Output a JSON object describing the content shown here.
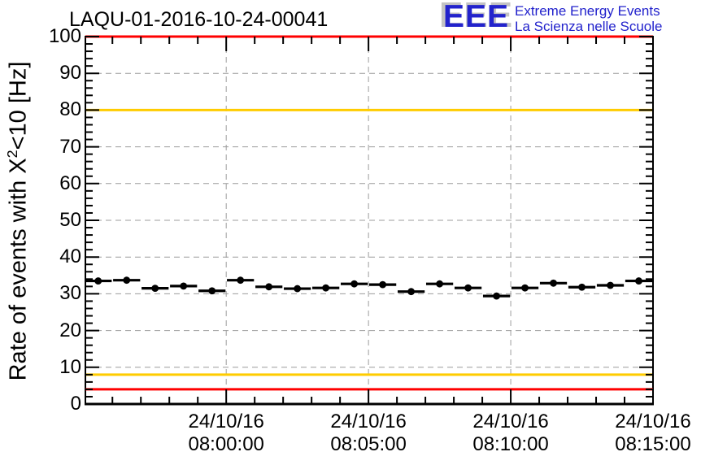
{
  "logo": {
    "acronym": "EEE",
    "line1": "Extreme Energy Events",
    "line2": "La Scienza nelle Scuole",
    "blue": "#2222cc",
    "shadow": "#c3c3c3"
  },
  "chart_data": {
    "type": "scatter",
    "title": "LAQU-01-2016-10-24-00041",
    "ylabel": {
      "prefix": "Rate of events with X",
      "sup": "2",
      "suffix": "<10 [Hz]"
    },
    "ylim": [
      0,
      100
    ],
    "y_major_step": 10,
    "y_minor_step": 2,
    "y_tick_labels": [
      "0",
      "10",
      "20",
      "30",
      "40",
      "50",
      "60",
      "70",
      "80",
      "90",
      "100"
    ],
    "x_axis": {
      "date": "24/10/16",
      "start": "07:55:03",
      "end": "08:15:00",
      "minor_tick_interval_s": 60,
      "major_ticks": [
        {
          "date": "24/10/16",
          "time": "08:00:00"
        },
        {
          "date": "24/10/16",
          "time": "08:05:00"
        },
        {
          "date": "24/10/16",
          "time": "08:10:00"
        },
        {
          "date": "24/10/16",
          "time": "08:15:00"
        }
      ]
    },
    "grid": true,
    "legend": "none",
    "series": [
      {
        "name": "event-rate",
        "marker": "filled-circle",
        "color": "#000000",
        "bin_width_s": 60,
        "bar_halfwidth_s": 28.5,
        "points": [
          {
            "time": "07:55:30",
            "value": 33.5
          },
          {
            "time": "07:56:30",
            "value": 33.7
          },
          {
            "time": "07:57:30",
            "value": 31.5
          },
          {
            "time": "07:58:30",
            "value": 32.1
          },
          {
            "time": "07:59:30",
            "value": 30.8
          },
          {
            "time": "08:00:30",
            "value": 33.7
          },
          {
            "time": "08:01:30",
            "value": 31.9
          },
          {
            "time": "08:02:30",
            "value": 31.4
          },
          {
            "time": "08:03:30",
            "value": 31.6
          },
          {
            "time": "08:04:30",
            "value": 32.7
          },
          {
            "time": "08:05:30",
            "value": 32.5
          },
          {
            "time": "08:06:30",
            "value": 30.6
          },
          {
            "time": "08:07:30",
            "value": 32.7
          },
          {
            "time": "08:08:30",
            "value": 31.6
          },
          {
            "time": "08:09:30",
            "value": 29.4
          },
          {
            "time": "08:10:30",
            "value": 31.6
          },
          {
            "time": "08:11:30",
            "value": 32.9
          },
          {
            "time": "08:12:30",
            "value": 31.8
          },
          {
            "time": "08:13:30",
            "value": 32.3
          },
          {
            "time": "08:14:30",
            "value": 33.5
          }
        ]
      }
    ],
    "threshold_lines": [
      {
        "value": 100,
        "color": "#ff0000",
        "level": "alarm-high"
      },
      {
        "value": 80,
        "color": "#ffcc00",
        "level": "warning-high"
      },
      {
        "value": 8,
        "color": "#ffcc00",
        "level": "warning-low"
      },
      {
        "value": 4,
        "color": "#ff0000",
        "level": "alarm-low"
      }
    ],
    "colors": {
      "grid": "#9c9c9c",
      "axis": "#000000",
      "marker": "#000000"
    }
  }
}
